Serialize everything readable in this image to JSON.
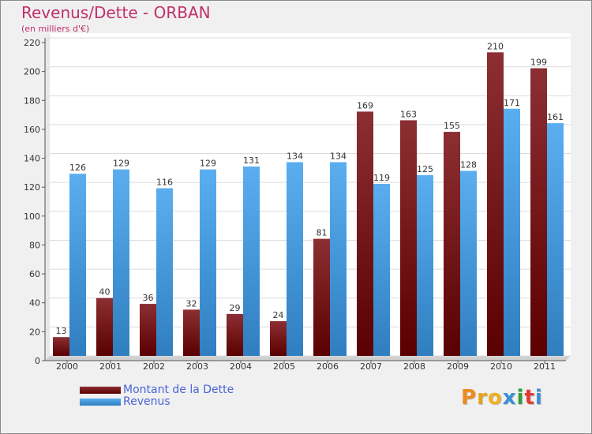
{
  "title": "Revenus/Dette - ORBAN",
  "subtitle": "(en milliers d'€)",
  "logo": "Proxiti",
  "colors": {
    "dette_top": "#8c2f33",
    "dette_bottom": "#5a0000",
    "revenus_top": "#5aaef0",
    "revenus_bottom": "#2f7ec0",
    "title": "#c0306b",
    "legend_text": "#4a64d8",
    "logo_letters": [
      "#f08a1c",
      "#e8a21a",
      "#f0b020",
      "#3a8fd8",
      "#2e9e3a",
      "#e23a30",
      "#3a8fd8"
    ]
  },
  "chart_data": {
    "type": "bar",
    "title": "Revenus/Dette - ORBAN",
    "subtitle": "(en milliers d'€)",
    "categories": [
      "2000",
      "2001",
      "2002",
      "2003",
      "2004",
      "2005",
      "2006",
      "2007",
      "2008",
      "2009",
      "2010",
      "2011"
    ],
    "series": [
      {
        "name": "Montant de la Dette",
        "values": [
          13,
          40,
          36,
          32,
          29,
          24,
          81,
          169,
          163,
          155,
          210,
          199
        ]
      },
      {
        "name": "Revenus",
        "values": [
          126,
          129,
          116,
          129,
          131,
          134,
          134,
          119,
          125,
          128,
          171,
          161
        ]
      }
    ],
    "yticks": [
      0,
      20,
      40,
      60,
      80,
      100,
      120,
      140,
      160,
      180,
      200,
      220
    ],
    "ylim": [
      0,
      220
    ],
    "grid": true,
    "legend_position": "bottom-left"
  }
}
